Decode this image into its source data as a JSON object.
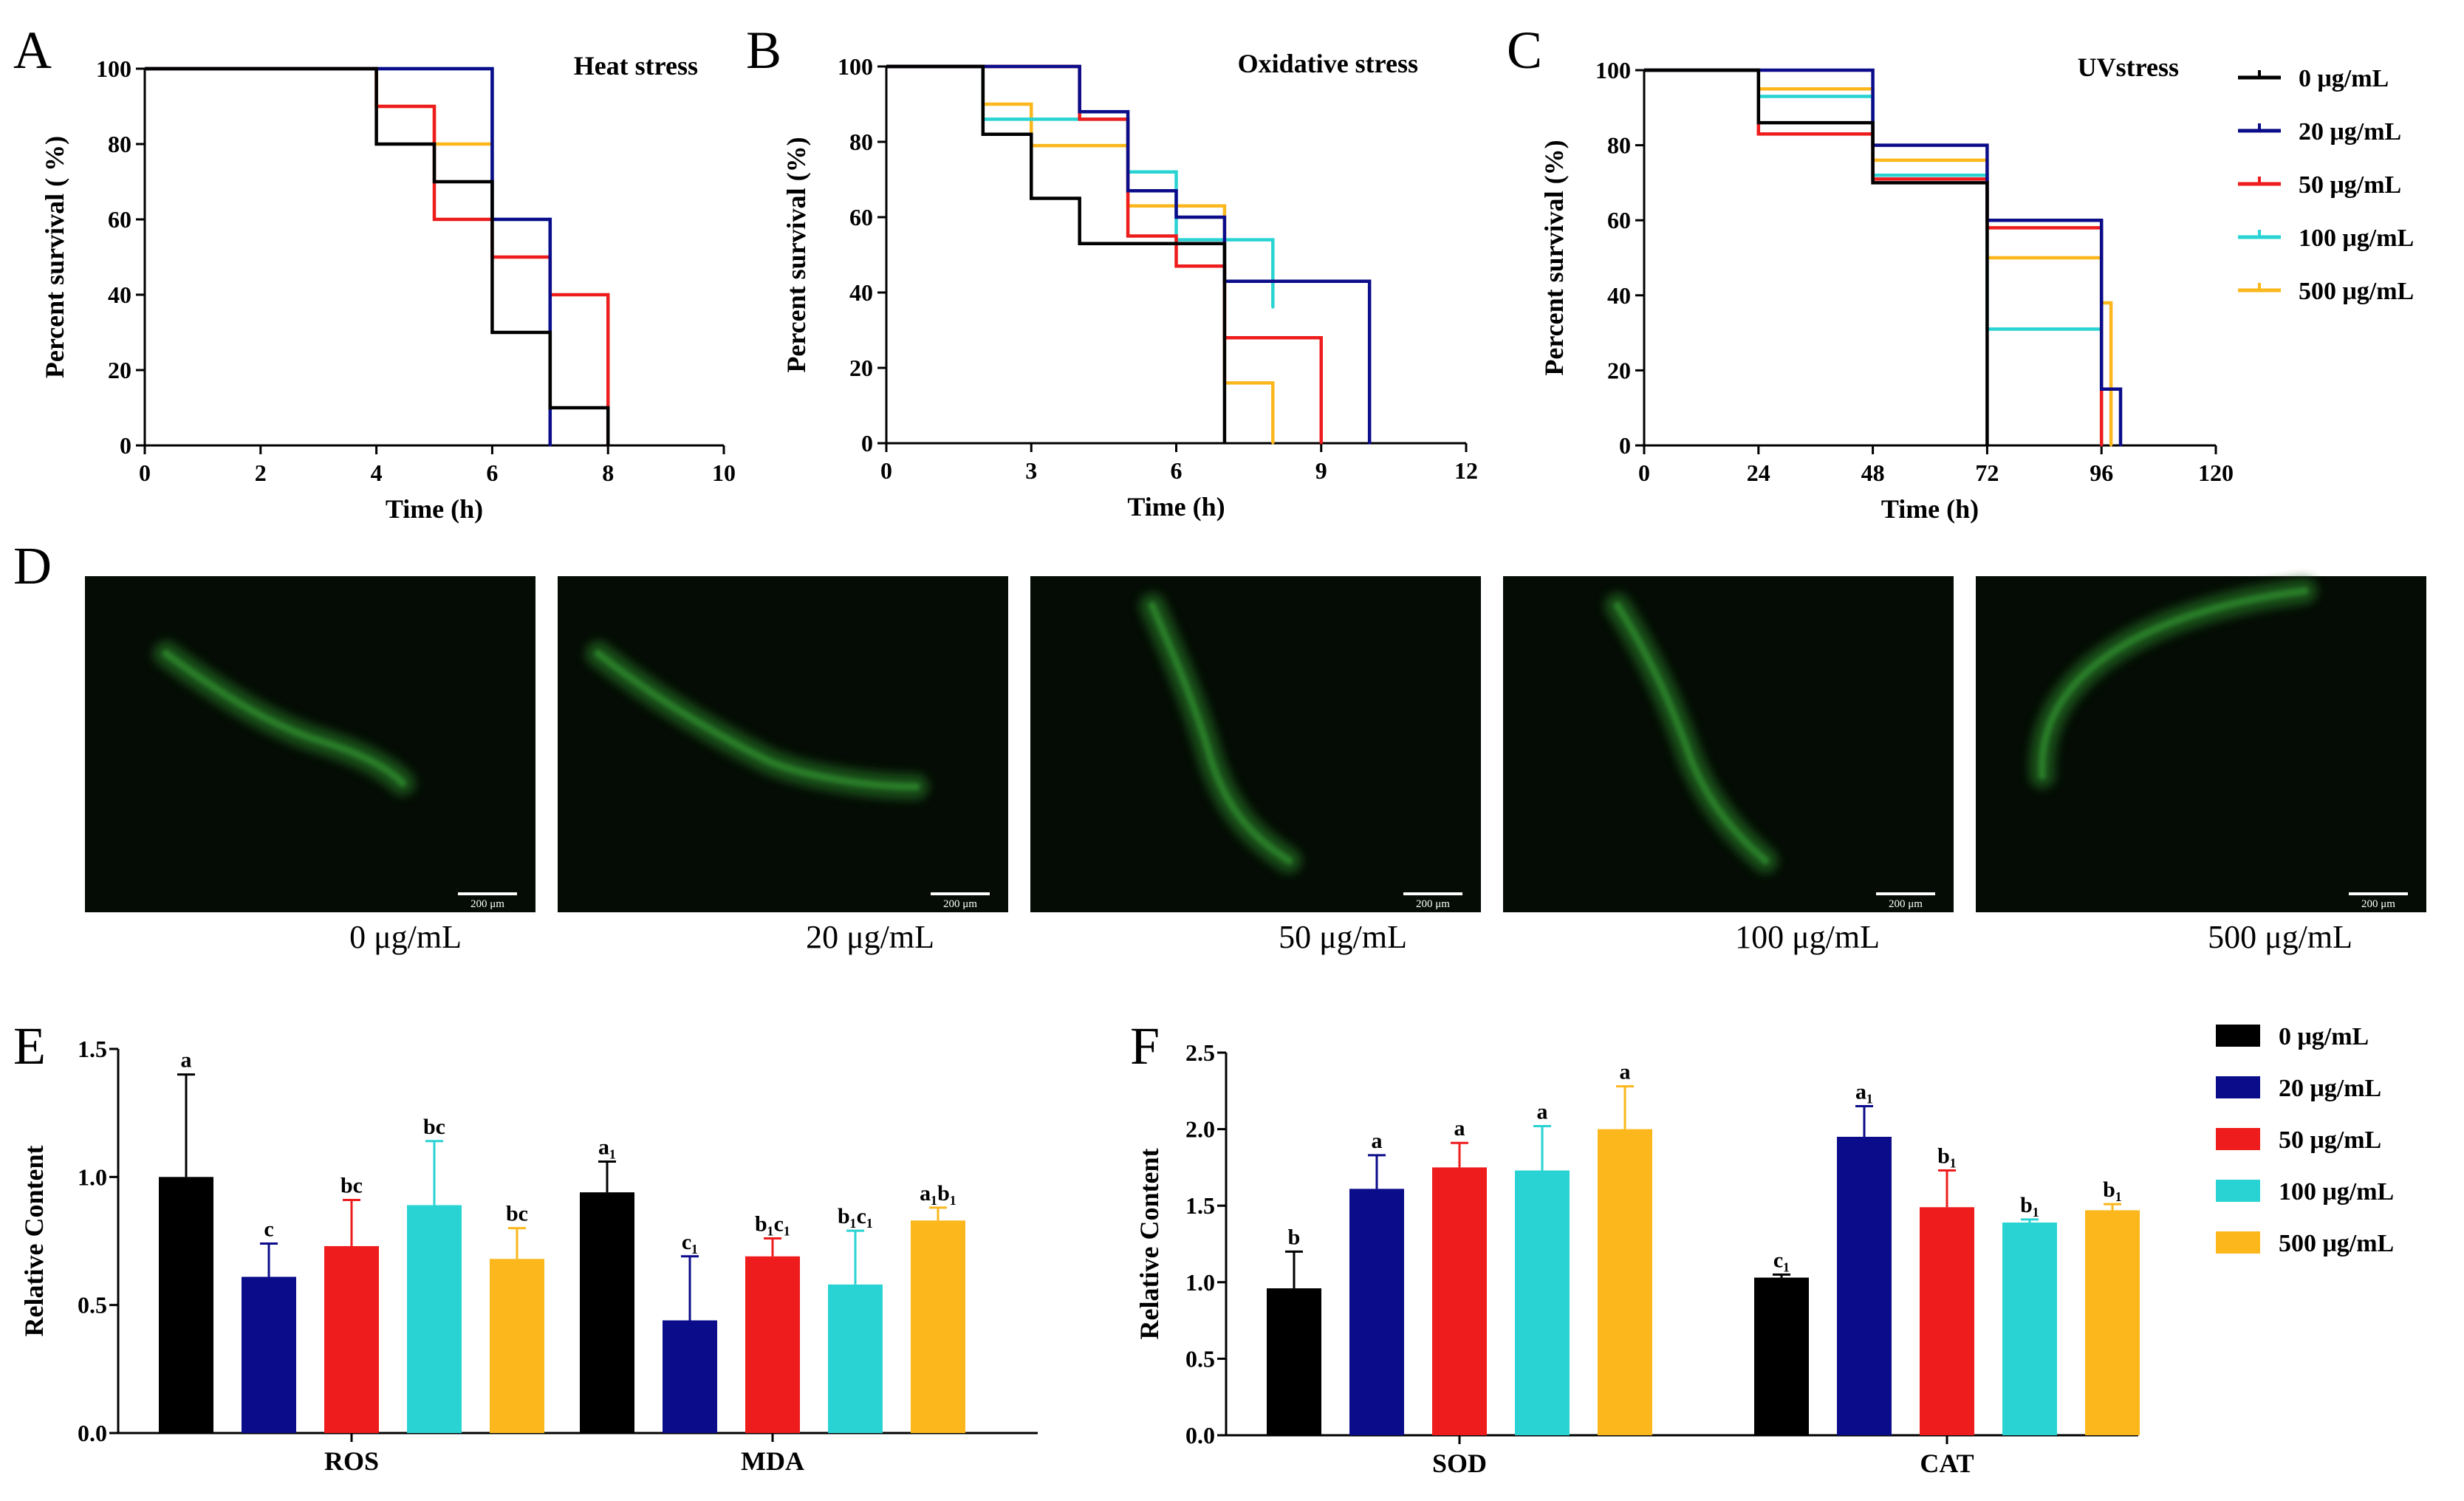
{
  "colors": {
    "0": "#000000",
    "20": "#0b0c8a",
    "50": "#ee1c1c",
    "100": "#2ad3d3",
    "500": "#fbb71b"
  },
  "series_labels": [
    "0 μg/mL",
    "20 μg/mL",
    "50 μg/mL",
    "100 μg/mL",
    "500 μg/mL"
  ],
  "panel_letters": {
    "A": "A",
    "B": "B",
    "C": "C",
    "D": "D",
    "E": "E",
    "F": "F"
  },
  "chart_data": [
    {
      "panel": "A",
      "type": "line",
      "title": "Heat stress",
      "xlabel": "Time (h)",
      "ylabel": "Percent survival ( %)",
      "xlim": [
        0,
        10
      ],
      "ylim": [
        0,
        100
      ],
      "xticks": [
        0,
        2,
        4,
        6,
        8,
        10
      ],
      "yticks": [
        0,
        20,
        40,
        60,
        80,
        100
      ],
      "series": [
        {
          "name": "0 μg/mL",
          "x": [
            0,
            4,
            5,
            6,
            7,
            8
          ],
          "y": [
            100,
            80,
            70,
            30,
            10,
            0
          ]
        },
        {
          "name": "20 μg/mL",
          "x": [
            0,
            6,
            7
          ],
          "y": [
            100,
            60,
            0
          ]
        },
        {
          "name": "50 μg/mL",
          "x": [
            0,
            4,
            5,
            6,
            7,
            8
          ],
          "y": [
            100,
            90,
            60,
            50,
            40,
            0
          ]
        },
        {
          "name": "100 μg/mL",
          "x": [
            0,
            6,
            7
          ],
          "y": [
            100,
            60,
            10
          ]
        },
        {
          "name": "500 μg/mL",
          "x": [
            0,
            4,
            5,
            6
          ],
          "y": [
            100,
            90,
            80,
            60
          ]
        }
      ]
    },
    {
      "panel": "B",
      "type": "line",
      "title": "Oxidative stress",
      "xlabel": "Time (h)",
      "ylabel": "Percent survival (%)",
      "xlim": [
        0,
        12
      ],
      "ylim": [
        0,
        100
      ],
      "xticks": [
        0,
        3,
        6,
        9,
        12
      ],
      "yticks": [
        0,
        20,
        40,
        60,
        80,
        100
      ],
      "series": [
        {
          "name": "0 μg/mL",
          "x": [
            0,
            2,
            3,
            4,
            7
          ],
          "y": [
            100,
            82,
            65,
            53,
            0
          ]
        },
        {
          "name": "20 μg/mL",
          "x": [
            0,
            4,
            5,
            6,
            7,
            10
          ],
          "y": [
            100,
            88,
            67,
            60,
            43,
            0
          ]
        },
        {
          "name": "50 μg/mL",
          "x": [
            0,
            4,
            5,
            6,
            7,
            9
          ],
          "y": [
            100,
            86,
            55,
            47,
            28,
            0
          ]
        },
        {
          "name": "100 μg/mL",
          "x": [
            0,
            2,
            5,
            6,
            8
          ],
          "y": [
            100,
            86,
            72,
            54,
            36
          ]
        },
        {
          "name": "500 μg/mL",
          "x": [
            0,
            2,
            3,
            5,
            7,
            8
          ],
          "y": [
            100,
            90,
            79,
            63,
            16,
            0
          ]
        }
      ]
    },
    {
      "panel": "C",
      "type": "line",
      "title": "UVstress",
      "xlabel": "Time (h)",
      "ylabel": "Percent survival (%)",
      "xlim": [
        0,
        120
      ],
      "ylim": [
        0,
        100
      ],
      "xticks": [
        0,
        24,
        48,
        72,
        96,
        120
      ],
      "yticks": [
        0,
        20,
        40,
        60,
        80,
        100
      ],
      "series": [
        {
          "name": "0 μg/mL",
          "x": [
            0,
            24,
            48,
            72
          ],
          "y": [
            100,
            86,
            70,
            0
          ]
        },
        {
          "name": "20 μg/mL",
          "x": [
            0,
            48,
            72,
            96,
            100
          ],
          "y": [
            100,
            80,
            60,
            15,
            0
          ]
        },
        {
          "name": "50 μg/mL",
          "x": [
            0,
            24,
            48,
            72,
            96
          ],
          "y": [
            100,
            83,
            71,
            58,
            0
          ]
        },
        {
          "name": "100 μg/mL",
          "x": [
            0,
            24,
            48,
            72,
            96
          ],
          "y": [
            100,
            93,
            72,
            31,
            0
          ]
        },
        {
          "name": "500 μg/mL",
          "x": [
            0,
            24,
            48,
            72,
            96,
            98
          ],
          "y": [
            100,
            95,
            76,
            50,
            38,
            0
          ]
        }
      ]
    },
    {
      "panel": "E",
      "type": "bar",
      "ylabel": "Relative Content",
      "ylim": [
        0,
        1.5
      ],
      "yticks": [
        "0.0",
        "0.5",
        "1.0",
        "1.5"
      ],
      "categories": [
        "ROS",
        "MDA"
      ],
      "series": [
        {
          "name": "0 μg/mL",
          "values": [
            1.0,
            0.94
          ],
          "errors": [
            0.4,
            0.12
          ],
          "labels": [
            "a",
            "a₁"
          ]
        },
        {
          "name": "20 μg/mL",
          "values": [
            0.61,
            0.44
          ],
          "errors": [
            0.13,
            0.25
          ],
          "labels": [
            "c",
            "c₁"
          ]
        },
        {
          "name": "50 μg/mL",
          "values": [
            0.73,
            0.69
          ],
          "errors": [
            0.18,
            0.07
          ],
          "labels": [
            "bc",
            "b₁c₁"
          ]
        },
        {
          "name": "100 μg/mL",
          "values": [
            0.89,
            0.58
          ],
          "errors": [
            0.25,
            0.21
          ],
          "labels": [
            "bc",
            "b₁c₁"
          ]
        },
        {
          "name": "500 μg/mL",
          "values": [
            0.68,
            0.83
          ],
          "errors": [
            0.12,
            0.05
          ],
          "labels": [
            "bc",
            "a₁b₁"
          ]
        }
      ]
    },
    {
      "panel": "F",
      "type": "bar",
      "ylabel": "Relative Content",
      "ylim": [
        0,
        2.5
      ],
      "yticks": [
        "0.0",
        "0.5",
        "1.0",
        "1.5",
        "2.0",
        "2.5"
      ],
      "categories": [
        "SOD",
        "CAT"
      ],
      "series": [
        {
          "name": "0 μg/mL",
          "values": [
            0.96,
            1.03
          ],
          "errors": [
            0.24,
            0.02
          ],
          "labels": [
            "b",
            "c₁"
          ]
        },
        {
          "name": "20 μg/mL",
          "values": [
            1.61,
            1.95
          ],
          "errors": [
            0.22,
            0.2
          ],
          "labels": [
            "a",
            "a₁"
          ]
        },
        {
          "name": "50 μg/mL",
          "values": [
            1.75,
            1.49
          ],
          "errors": [
            0.16,
            0.24
          ],
          "labels": [
            "a",
            "b₁"
          ]
        },
        {
          "name": "100 μg/mL",
          "values": [
            1.73,
            1.39
          ],
          "errors": [
            0.29,
            0.02
          ],
          "labels": [
            "a",
            "b₁"
          ]
        },
        {
          "name": "500 μg/mL",
          "values": [
            2.0,
            1.47
          ],
          "errors": [
            0.28,
            0.04
          ],
          "labels": [
            "a",
            "b₁"
          ]
        }
      ]
    }
  ],
  "micrographs": {
    "captions": [
      "0 μg/mL",
      "20 μg/mL",
      "50 μg/mL",
      "100 μg/mL",
      "500 μg/mL"
    ],
    "scale_bar": "200 μm"
  }
}
